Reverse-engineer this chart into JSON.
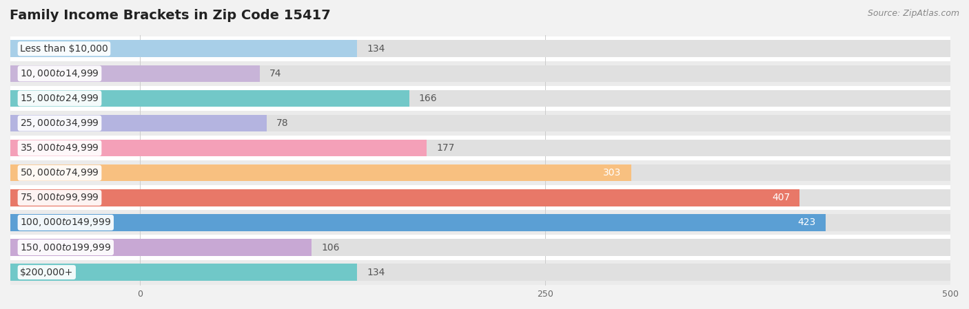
{
  "title": "Family Income Brackets in Zip Code 15417",
  "source": "Source: ZipAtlas.com",
  "categories": [
    "Less than $10,000",
    "$10,000 to $14,999",
    "$15,000 to $24,999",
    "$25,000 to $34,999",
    "$35,000 to $49,999",
    "$50,000 to $74,999",
    "$75,000 to $99,999",
    "$100,000 to $149,999",
    "$150,000 to $199,999",
    "$200,000+"
  ],
  "values": [
    134,
    74,
    166,
    78,
    177,
    303,
    407,
    423,
    106,
    134
  ],
  "bar_colors": [
    "#a8cfe8",
    "#c8b4d8",
    "#72c8c8",
    "#b4b4e0",
    "#f4a0b8",
    "#f8c080",
    "#e87868",
    "#5b9fd4",
    "#c8a8d4",
    "#70c8c8"
  ],
  "label_colors_inside": [
    "#ffffff",
    "#ffffff",
    "#ffffff"
  ],
  "xlim_min": -80,
  "xlim_max": 500,
  "xticks": [
    0,
    250,
    500
  ],
  "background_color": "#f2f2f2",
  "row_bg_even": "#ffffff",
  "row_bg_odd": "#ebebeb",
  "bar_bg_color": "#e0e0e0",
  "title_fontsize": 14,
  "source_fontsize": 9,
  "value_fontsize": 10,
  "category_fontsize": 10,
  "inside_label_threshold": 280
}
